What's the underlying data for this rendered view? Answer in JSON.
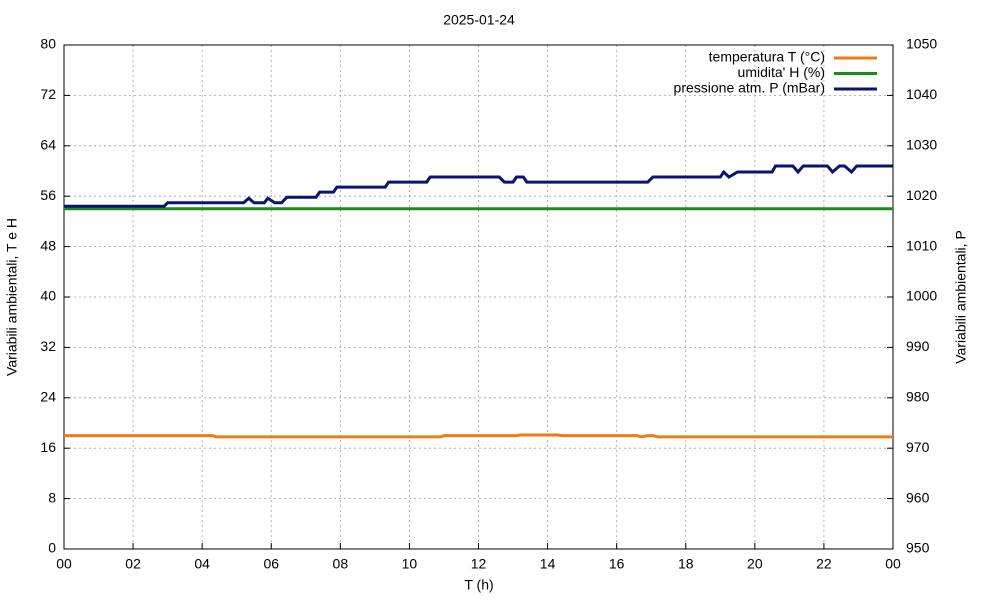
{
  "chart_data": {
    "type": "line",
    "title": "2025-01-24",
    "x_label": "T (h)",
    "y_label": "Variabili ambientali, T e H",
    "y2_label": "Variabili ambientali, P",
    "x": [
      0,
      2.9,
      3.0,
      4.3,
      4.4,
      5.2,
      5.35,
      5.5,
      5.8,
      5.9,
      6.1,
      6.3,
      6.45,
      7.3,
      7.4,
      7.8,
      7.9,
      9.3,
      9.4,
      10.5,
      10.6,
      10.9,
      11.0,
      12.6,
      12.75,
      13.0,
      13.1,
      13.2,
      13.3,
      13.4,
      14.3,
      14.4,
      16.6,
      16.7,
      16.9,
      17.05,
      17.2,
      19.0,
      19.1,
      19.25,
      19.5,
      20.5,
      20.6,
      21.1,
      21.25,
      21.4,
      22.1,
      22.25,
      22.45,
      22.6,
      22.8,
      22.95,
      24
    ],
    "series": [
      {
        "name": "temperatura T (°C)",
        "color": "#f07b14",
        "values": [
          18,
          18,
          18,
          18,
          17.8,
          17.8,
          17.8,
          17.8,
          17.8,
          17.8,
          17.8,
          17.8,
          17.8,
          17.8,
          17.8,
          17.8,
          17.8,
          17.8,
          17.8,
          17.8,
          17.8,
          17.8,
          18,
          18,
          18,
          18,
          18,
          18.1,
          18.1,
          18.1,
          18.1,
          18,
          18,
          17.8,
          18,
          18,
          17.8,
          17.8,
          17.8,
          17.8,
          17.8,
          17.8,
          17.8,
          17.8,
          17.8,
          17.8,
          17.8,
          17.8,
          17.8,
          17.8,
          17.8,
          17.8,
          17.8
        ]
      },
      {
        "name": "umidita' H (%)",
        "color": "#1c8a1c",
        "values": [
          54,
          54,
          54,
          54,
          54,
          54,
          54,
          54,
          54,
          54,
          54,
          54,
          54,
          54,
          54,
          54,
          54,
          54,
          54,
          54,
          54,
          54,
          54,
          54,
          54,
          54,
          54,
          54,
          54,
          54,
          54,
          54,
          54,
          54,
          54,
          54,
          54,
          54,
          54,
          54,
          54,
          54,
          54,
          54,
          54,
          54,
          54,
          54,
          54,
          54,
          54,
          54,
          54
        ]
      },
      {
        "name": "pressione atm. P (mBar)",
        "color": "#0a1470",
        "axis": "y2",
        "values": [
          1018,
          1018,
          1018.7,
          1018.7,
          1018.7,
          1018.7,
          1019.6,
          1018.7,
          1018.7,
          1019.6,
          1018.7,
          1018.7,
          1019.8,
          1019.8,
          1020.8,
          1020.8,
          1021.8,
          1021.8,
          1022.8,
          1022.8,
          1023.8,
          1023.8,
          1023.8,
          1023.8,
          1022.8,
          1022.8,
          1023.8,
          1023.8,
          1023.8,
          1022.8,
          1022.8,
          1022.8,
          1022.8,
          1022.8,
          1022.8,
          1023.8,
          1023.8,
          1023.8,
          1024.8,
          1023.8,
          1024.8,
          1024.8,
          1026,
          1026,
          1024.8,
          1026,
          1026,
          1024.8,
          1026,
          1026,
          1024.8,
          1026,
          1026
        ]
      }
    ],
    "xlim": [
      0,
      24
    ],
    "xticks": [
      {
        "value": 0,
        "label": "00"
      },
      {
        "value": 2,
        "label": "02"
      },
      {
        "value": 4,
        "label": "04"
      },
      {
        "value": 6,
        "label": "06"
      },
      {
        "value": 8,
        "label": "08"
      },
      10,
      12,
      14,
      16,
      18,
      20,
      22,
      {
        "value": 24,
        "label": "00"
      }
    ],
    "ylim": [
      0,
      80
    ],
    "yticks": [
      0,
      8,
      16,
      24,
      32,
      40,
      48,
      56,
      64,
      72,
      80
    ],
    "y2lim": [
      950,
      1050
    ],
    "y2ticks": [
      950,
      960,
      970,
      980,
      990,
      1000,
      1010,
      1020,
      1030,
      1040,
      1050
    ],
    "grid": true,
    "legend": "top-right"
  }
}
